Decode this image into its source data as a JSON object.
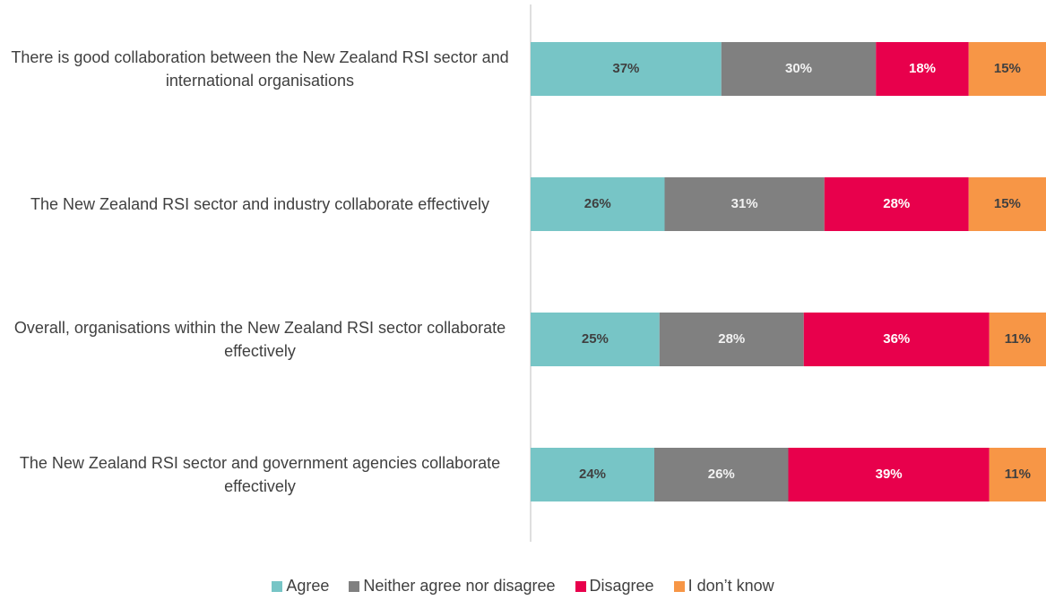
{
  "chart_data": {
    "type": "stacked-bar-horizontal",
    "categories": [
      "There is good collaboration between the New Zealand RSI sector and international organisations",
      "The New Zealand RSI sector and industry collaborate effectively",
      "Overall, organisations within the New Zealand RSI sector collaborate effectively",
      "The New Zealand RSI sector and government agencies collaborate effectively"
    ],
    "series": [
      {
        "name": "Agree",
        "color": "#77c5c6",
        "label_color": "#404040",
        "values": [
          37,
          26,
          25,
          24
        ],
        "value_labels": [
          "37%",
          "26%",
          "25%",
          "24%"
        ]
      },
      {
        "name": "Neither agree nor disagree",
        "color": "#808080",
        "label_color": "#f2f2f2",
        "values": [
          30,
          31,
          28,
          26
        ],
        "value_labels": [
          "30%",
          "31%",
          "28%",
          "26%"
        ]
      },
      {
        "name": "Disagree",
        "color": "#e8004c",
        "label_color": "#ffffff",
        "values": [
          18,
          28,
          36,
          39
        ],
        "value_labels": [
          "18%",
          "28%",
          "36%",
          "39%"
        ]
      },
      {
        "name": "I don’t know",
        "color": "#f79646",
        "label_color": "#404040",
        "values": [
          15,
          15,
          11,
          11
        ],
        "value_labels": [
          "15%",
          "15%",
          "11%",
          "11%"
        ]
      }
    ],
    "xlim": [
      0,
      100
    ],
    "legend": "bottom"
  }
}
